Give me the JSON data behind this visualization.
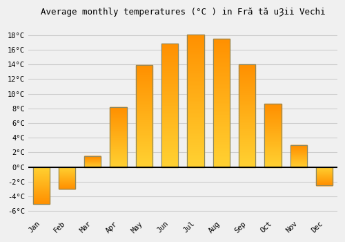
{
  "months": [
    "Jan",
    "Feb",
    "Mar",
    "Apr",
    "May",
    "Jun",
    "Jul",
    "Aug",
    "Sep",
    "Oct",
    "Nov",
    "Dec"
  ],
  "values": [
    -5.0,
    -3.0,
    1.5,
    8.2,
    13.9,
    16.8,
    18.1,
    17.5,
    14.0,
    8.6,
    3.0,
    -2.5
  ],
  "bar_color": "#FFA020",
  "bar_gradient_top": "#FF9000",
  "bar_gradient_bottom": "#FFCC00",
  "bar_edge_color": "#888866",
  "title": "Average monthly temperatures (°C ) in Fră tă uȜii Vechi",
  "ylabel_ticks": [
    "-6°C",
    "-4°C",
    "-2°C",
    "0°C",
    "2°C",
    "4°C",
    "6°C",
    "8°C",
    "10°C",
    "12°C",
    "14°C",
    "16°C",
    "18°C"
  ],
  "yticks": [
    -6,
    -4,
    -2,
    0,
    2,
    4,
    6,
    8,
    10,
    12,
    14,
    16,
    18
  ],
  "ylim": [
    -6.8,
    20.0
  ],
  "background_color": "#f0f0f0",
  "grid_color": "#cccccc",
  "zero_line_color": "#000000",
  "title_fontsize": 9,
  "tick_fontsize": 7.5,
  "bar_width": 0.65,
  "figsize": [
    5.0,
    3.5
  ],
  "dpi": 100
}
